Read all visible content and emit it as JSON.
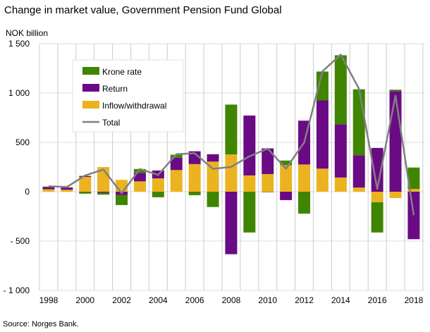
{
  "chart_data": {
    "type": "bar",
    "stacked": true,
    "title": "Change in market value, Government Pension Fund Global",
    "ylabel": "NOK billion",
    "xlabel": "",
    "source": "Source: Norges Bank.",
    "ylim": [
      -1000,
      1500
    ],
    "yticks": [
      1500,
      1000,
      500,
      0,
      -500,
      -1000
    ],
    "ytick_labels": [
      "1 500",
      "1 000",
      "500",
      "0",
      "- 500",
      "- 1 000"
    ],
    "xtick_labels": [
      "1998",
      "2000",
      "2002",
      "2004",
      "2006",
      "2008",
      "2010",
      "2012",
      "2014",
      "2016",
      "2018"
    ],
    "grid": true,
    "legend_position": "top-left",
    "categories": [
      1998,
      1999,
      2000,
      2001,
      2002,
      2003,
      2004,
      2005,
      2006,
      2007,
      2008,
      2009,
      2010,
      2011,
      2012,
      2013,
      2014,
      2015,
      2016,
      2017,
      2018
    ],
    "series": [
      {
        "name": "Inflow/withdrawal",
        "type": "bar",
        "color": "#ebb320",
        "values": [
          25,
          20,
          150,
          250,
          120,
          105,
          135,
          220,
          280,
          305,
          378,
          165,
          179,
          269,
          276,
          234,
          144,
          42,
          -106,
          -64,
          28
        ]
      },
      {
        "name": "Return",
        "type": "bar",
        "color": "#6a0a84",
        "values": [
          22,
          20,
          10,
          -10,
          -35,
          85,
          80,
          125,
          130,
          75,
          -633,
          607,
          260,
          -85,
          444,
          691,
          540,
          328,
          444,
          1019,
          -481
        ]
      },
      {
        "name": "Krone rate",
        "type": "bar",
        "color": "#3f8500",
        "values": [
          5,
          5,
          -20,
          -20,
          -100,
          40,
          -56,
          30,
          -35,
          -155,
          505,
          -413,
          -5,
          47,
          -222,
          293,
          699,
          668,
          -307,
          15,
          217
        ]
      },
      {
        "name": "Total",
        "type": "line",
        "color": "#808080",
        "values": [
          55,
          48,
          165,
          225,
          -15,
          230,
          170,
          380,
          390,
          232,
          252,
          359,
          437,
          234,
          500,
          1220,
          1390,
          1043,
          28,
          972,
          -238
        ]
      }
    ]
  }
}
